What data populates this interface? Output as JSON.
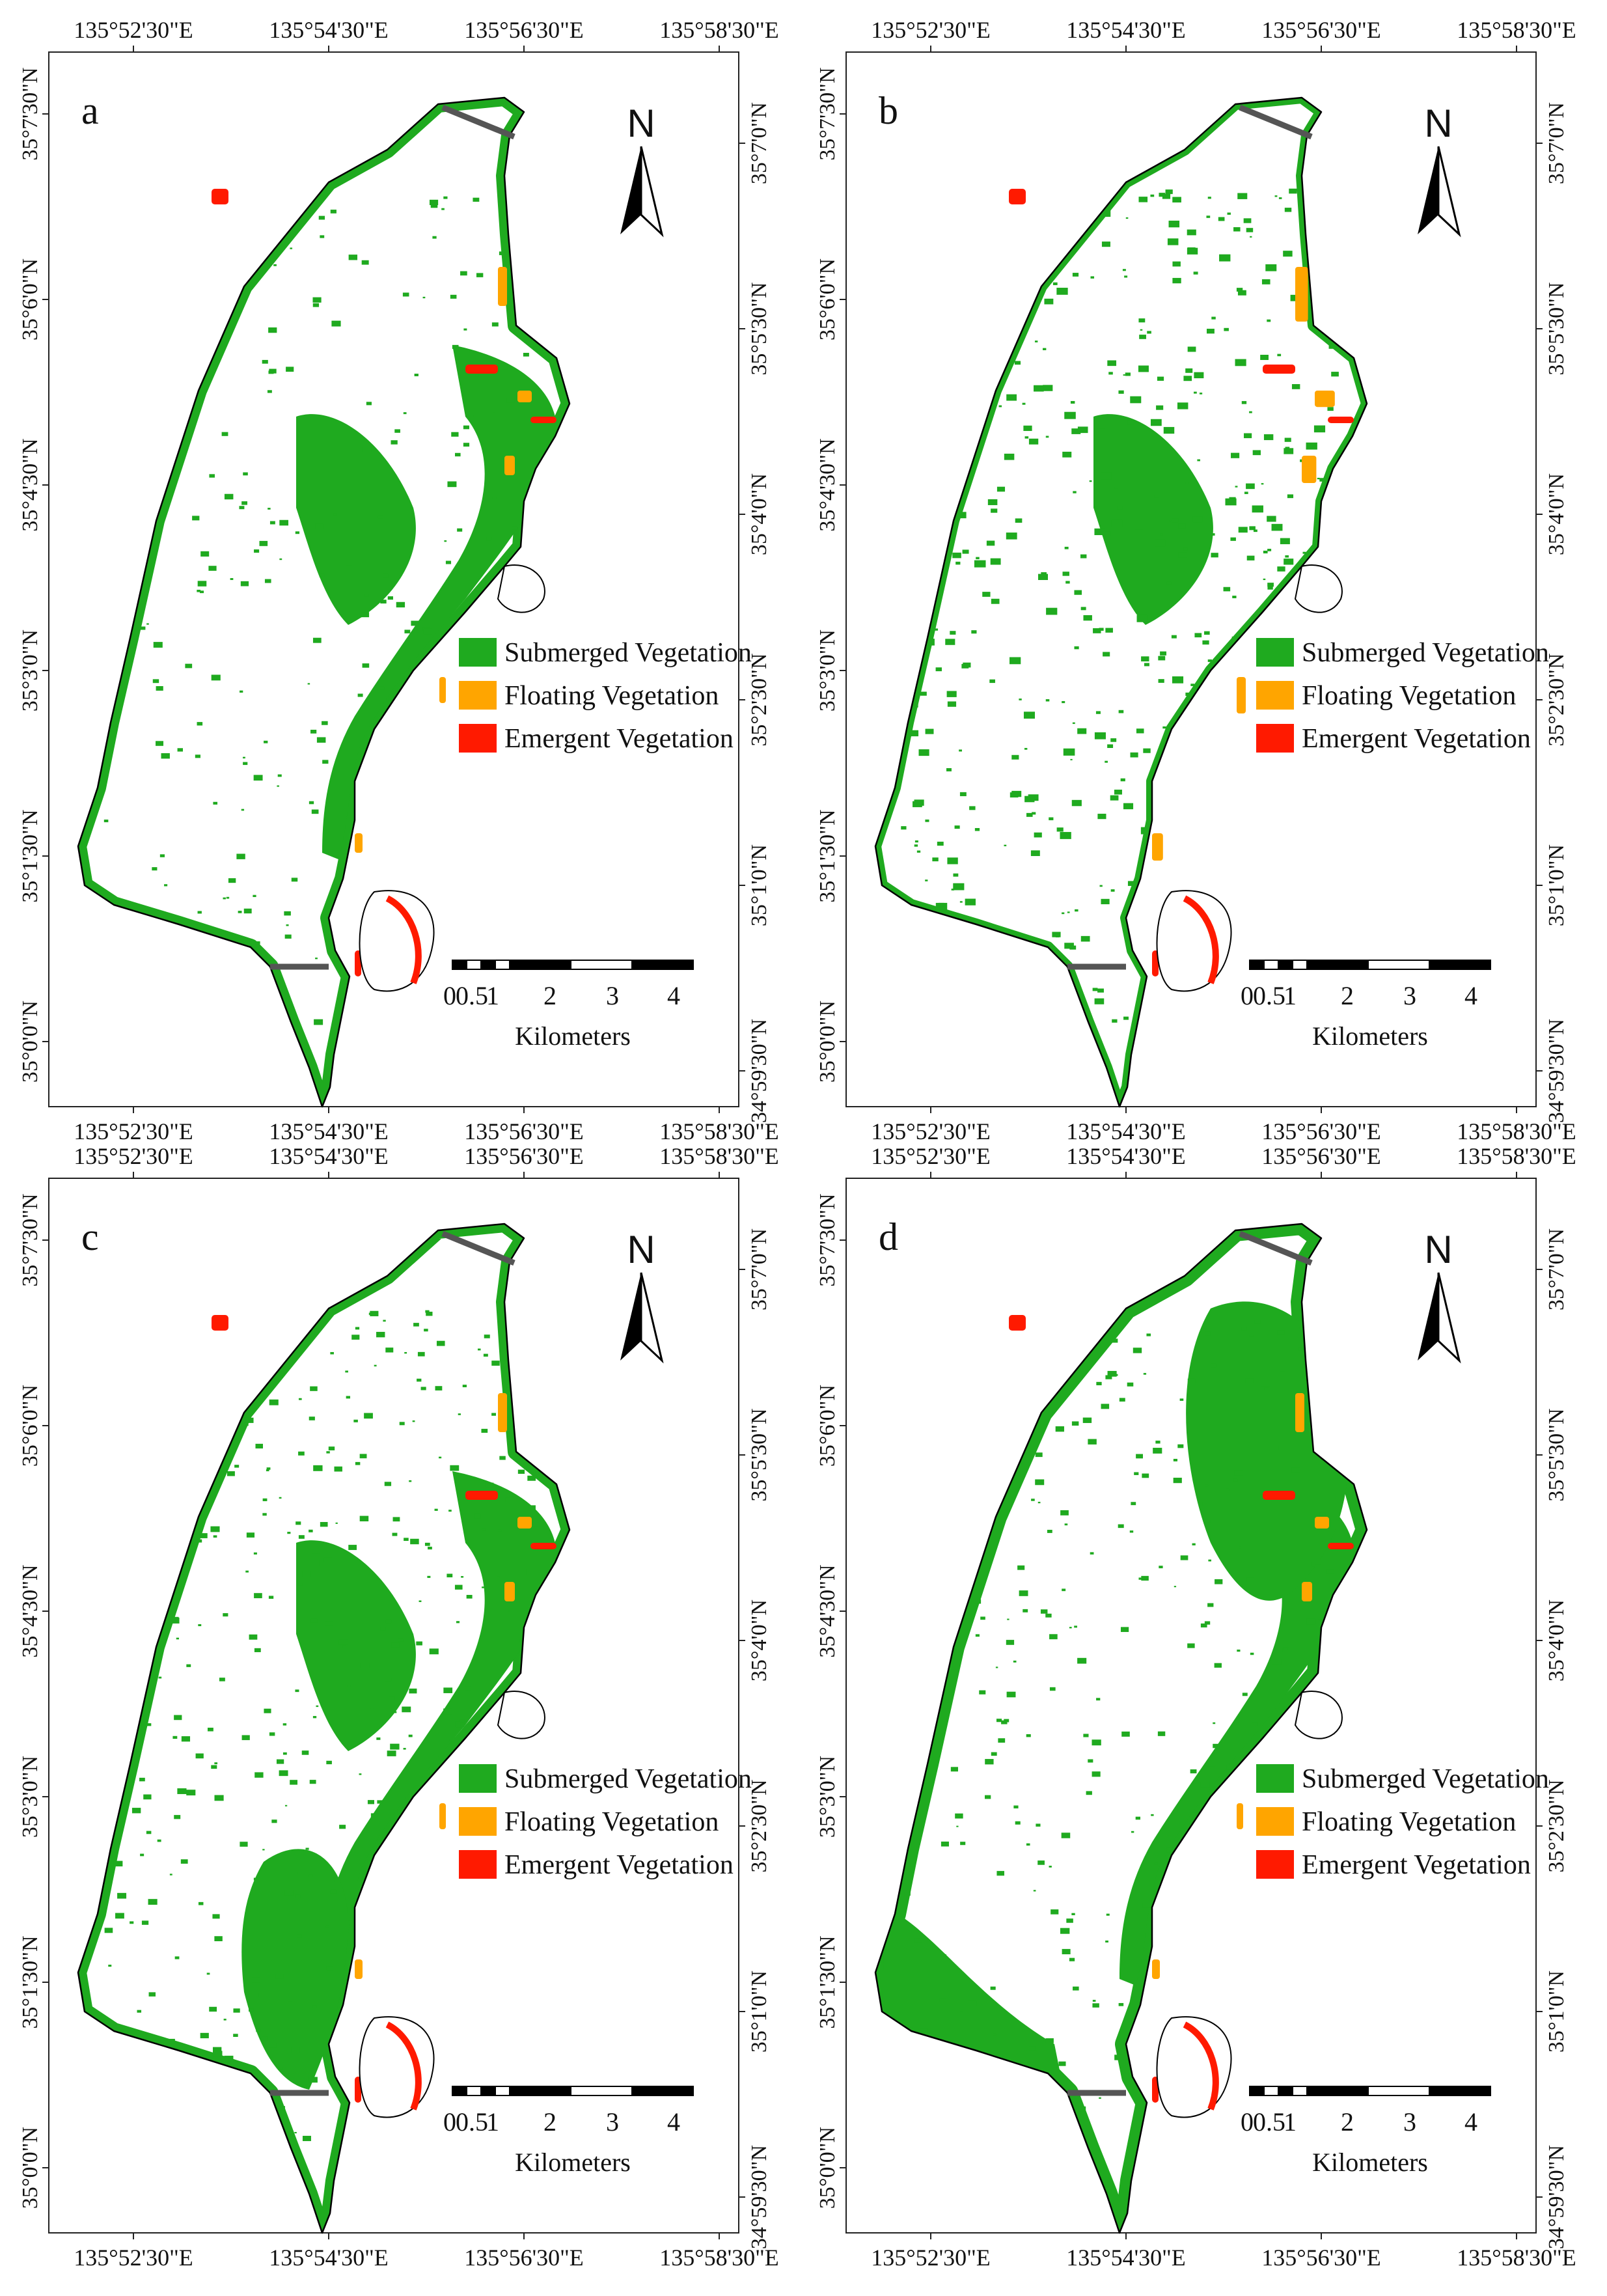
{
  "figure": {
    "panels": [
      {
        "label": "a",
        "top_ticks": [
          "135°52'30\"E",
          "135°54'30\"E",
          "135°56'30\"E",
          "135°58'30\"E"
        ],
        "bottom_ticks": [
          "135°52'30\"E",
          "135°54'30\"E",
          "135°56'30\"E",
          "135°58'30\"E"
        ],
        "left_ticks": [
          "35°7'30\"N",
          "35°6'0\"N",
          "35°4'30\"N",
          "35°3'0\"N",
          "35°1'30\"N",
          "35°0'0\"N"
        ],
        "right_ticks": [
          "35°7'0\"N",
          "35°5'30\"N",
          "35°4'0\"N",
          "35°2'30\"N",
          "35°1'0\"N",
          "34°59'30\"N"
        ]
      },
      {
        "label": "b",
        "top_ticks": [
          "135°52'30\"E",
          "135°54'30\"E",
          "135°56'30\"E",
          "135°58'30\"E"
        ],
        "bottom_ticks": [
          "135°52'30\"E",
          "135°54'30\"E",
          "135°56'30\"E",
          "135°58'30\"E"
        ],
        "left_ticks": [
          "35°7'30\"N",
          "35°6'0\"N",
          "35°4'30\"N",
          "35°3'0\"N",
          "35°1'30\"N",
          "35°0'0\"N"
        ],
        "right_ticks": [
          "35°7'0\"N",
          "35°5'30\"N",
          "35°4'0\"N",
          "35°2'30\"N",
          "35°1'0\"N",
          "34°59'30\"N"
        ]
      },
      {
        "label": "c",
        "top_ticks": [
          "135°52'30\"E",
          "135°54'30\"E",
          "135°56'30\"E",
          "135°58'30\"E"
        ],
        "bottom_ticks": [
          "135°52'30\"E",
          "135°54'30\"E",
          "135°56'30\"E",
          "135°58'30\"E"
        ],
        "left_ticks": [
          "35°7'30\"N",
          "35°6'0\"N",
          "35°4'30\"N",
          "35°3'0\"N",
          "35°1'30\"N",
          "35°0'0\"N"
        ],
        "right_ticks": [
          "35°7'0\"N",
          "35°5'30\"N",
          "35°4'0\"N",
          "35°2'30\"N",
          "35°1'0\"N",
          "34°59'30\"N"
        ]
      },
      {
        "label": "d",
        "top_ticks": [
          "135°52'30\"E",
          "135°54'30\"E",
          "135°56'30\"E",
          "135°58'30\"E"
        ],
        "bottom_ticks": [
          "135°52'30\"E",
          "135°54'30\"E",
          "135°56'30\"E",
          "135°58'30\"E"
        ],
        "left_ticks": [
          "35°7'30\"N",
          "35°6'0\"N",
          "35°4'30\"N",
          "35°3'0\"N",
          "35°1'30\"N",
          "35°0'0\"N"
        ],
        "right_ticks": [
          "35°7'0\"N",
          "35°5'30\"N",
          "35°4'0\"N",
          "35°2'30\"N",
          "35°1'0\"N",
          "34°59'30\"N"
        ]
      }
    ],
    "north_arrow": {
      "label": "N"
    },
    "legend": [
      {
        "label": "Submerged Vegetation",
        "color": "#1faa1f"
      },
      {
        "label": "Floating Vegetation",
        "color": "#ffa500"
      },
      {
        "label": "Emergent Vegetation",
        "color": "#ff1a00"
      }
    ],
    "scale_bar": {
      "labels": [
        "0",
        "0.5",
        "1",
        "2",
        "3",
        "4"
      ],
      "unit": "Kilometers"
    },
    "colors": {
      "lake_outline": "#000000",
      "boundary_line": "#555555",
      "water": "#ffffff"
    }
  }
}
